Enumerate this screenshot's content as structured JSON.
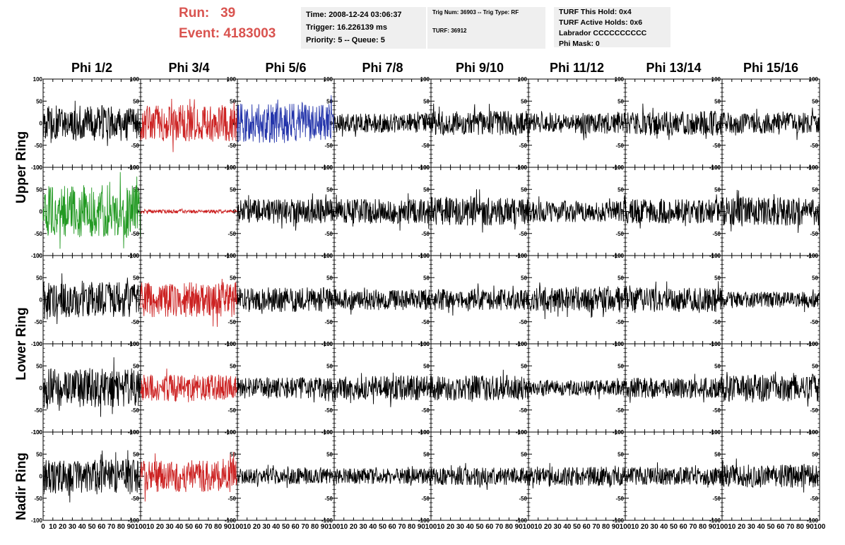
{
  "header": {
    "run_label": "Run:",
    "run_value": "39",
    "event_label": "Event:",
    "event_value": "4183003",
    "run_color": "#d9534f"
  },
  "info_time": {
    "time": "Time: 2008-12-24 03:06:37",
    "trigger": "Trigger: 16.226139 ms",
    "priority": "Priority: 5 -- Queue: 5"
  },
  "info_trig": {
    "trig": "Trig Num: 36903 -- Trig Type: RF",
    "turf": "TURF: 36912"
  },
  "info_turf": {
    "this_hold": "TURF This Hold: 0x4",
    "active_holds": "TURF Active Holds: 0x6",
    "labrador": "Labrador CCCCCCCCCC",
    "phi_mask": "Phi Mask: 0"
  },
  "phi_labels": [
    "Phi 1/2",
    "Phi 3/4",
    "Phi 5/6",
    "Phi 7/8",
    "Phi 9/10",
    "Phi 11/12",
    "Phi 13/14",
    "Phi 15/16"
  ],
  "ring_labels": {
    "upper": "Upper Ring",
    "lower": "Lower Ring",
    "nadir": "Nadir Ring"
  },
  "chart_data": {
    "type": "line",
    "x_ticks": [
      0,
      10,
      20,
      30,
      40,
      50,
      60,
      70,
      80,
      90,
      100
    ],
    "y_ticks": [
      -100,
      -50,
      0,
      50,
      100
    ],
    "xlim": [
      0,
      100
    ],
    "ylim": [
      -100,
      100
    ],
    "rows": 5,
    "cols": 8,
    "colors": {
      "default": "#000000",
      "red": "#cc2222",
      "blue": "#2233aa",
      "green": "#229922"
    },
    "panels": [
      [
        {
          "color": "default",
          "amp": 40
        },
        {
          "color": "red",
          "amp": 42
        },
        {
          "color": "blue",
          "amp": 45
        },
        {
          "color": "default",
          "amp": 22
        },
        {
          "color": "default",
          "amp": 28
        },
        {
          "color": "default",
          "amp": 24
        },
        {
          "color": "default",
          "amp": 28
        },
        {
          "color": "default",
          "amp": 24
        }
      ],
      [
        {
          "color": "green",
          "amp": 60
        },
        {
          "color": "red",
          "amp": 4
        },
        {
          "color": "default",
          "amp": 28
        },
        {
          "color": "default",
          "amp": 28
        },
        {
          "color": "default",
          "amp": 32
        },
        {
          "color": "default",
          "amp": 24
        },
        {
          "color": "default",
          "amp": 28
        },
        {
          "color": "default",
          "amp": 32
        }
      ],
      [
        {
          "color": "default",
          "amp": 40
        },
        {
          "color": "red",
          "amp": 40
        },
        {
          "color": "default",
          "amp": 28
        },
        {
          "color": "default",
          "amp": 24
        },
        {
          "color": "default",
          "amp": 24
        },
        {
          "color": "default",
          "amp": 30
        },
        {
          "color": "default",
          "amp": 28
        },
        {
          "color": "default",
          "amp": 18
        }
      ],
      [
        {
          "color": "default",
          "amp": 45
        },
        {
          "color": "red",
          "amp": 30
        },
        {
          "color": "default",
          "amp": 24
        },
        {
          "color": "default",
          "amp": 28
        },
        {
          "color": "default",
          "amp": 28
        },
        {
          "color": "default",
          "amp": 18
        },
        {
          "color": "default",
          "amp": 24
        },
        {
          "color": "default",
          "amp": 32
        }
      ],
      [
        {
          "color": "default",
          "amp": 38
        },
        {
          "color": "red",
          "amp": 36
        },
        {
          "color": "default",
          "amp": 18
        },
        {
          "color": "default",
          "amp": 18
        },
        {
          "color": "default",
          "amp": 20
        },
        {
          "color": "default",
          "amp": 22
        },
        {
          "color": "default",
          "amp": 20
        },
        {
          "color": "default",
          "amp": 26
        }
      ]
    ]
  }
}
